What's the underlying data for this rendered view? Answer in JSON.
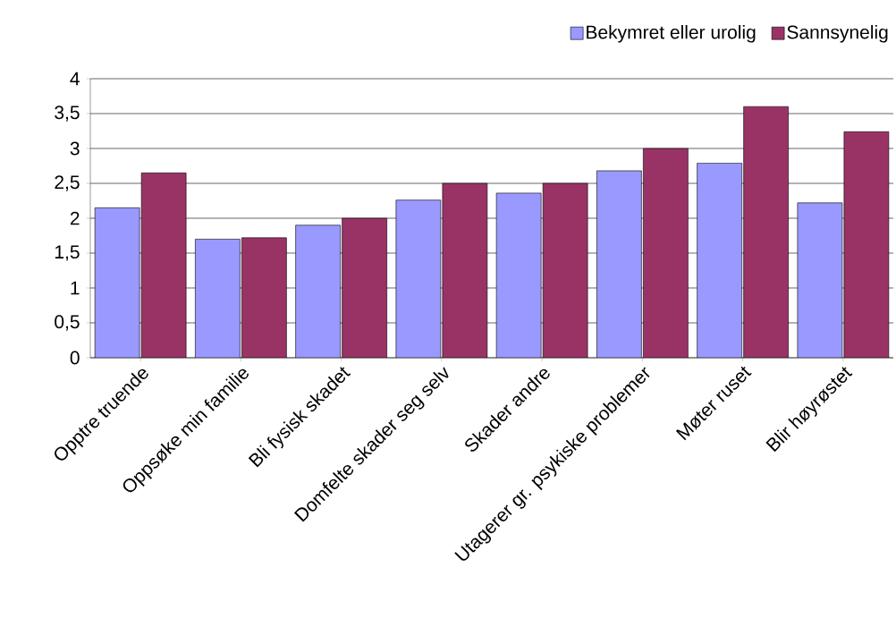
{
  "chart_data": {
    "type": "bar",
    "categories": [
      "Opptre truende",
      "Oppsøke min familie",
      "Bli fysisk skadet",
      "Domfelte skader seg selv",
      "Skader andre",
      "Utagerer gr. psykiske problemer",
      "Møter ruset",
      "Blir høyrøstet"
    ],
    "series": [
      {
        "name": "Bekymret eller urolig",
        "color": "#9999ff",
        "values": [
          2.15,
          1.7,
          1.9,
          2.26,
          2.36,
          2.68,
          2.79,
          2.22
        ]
      },
      {
        "name": "Sannsynelig",
        "color": "#993366",
        "values": [
          2.65,
          1.72,
          2.0,
          2.5,
          2.5,
          3.0,
          3.6,
          3.24
        ]
      }
    ],
    "ylim": [
      0,
      4
    ],
    "yticks": [
      0,
      {
        "value": 0.5,
        "label": "0,5"
      },
      1,
      {
        "value": 1.5,
        "label": "1,5"
      },
      2,
      {
        "value": 2.5,
        "label": "2,5"
      },
      3,
      {
        "value": 3.5,
        "label": "3,5"
      },
      4
    ],
    "grid": "y",
    "legend": "top right"
  }
}
